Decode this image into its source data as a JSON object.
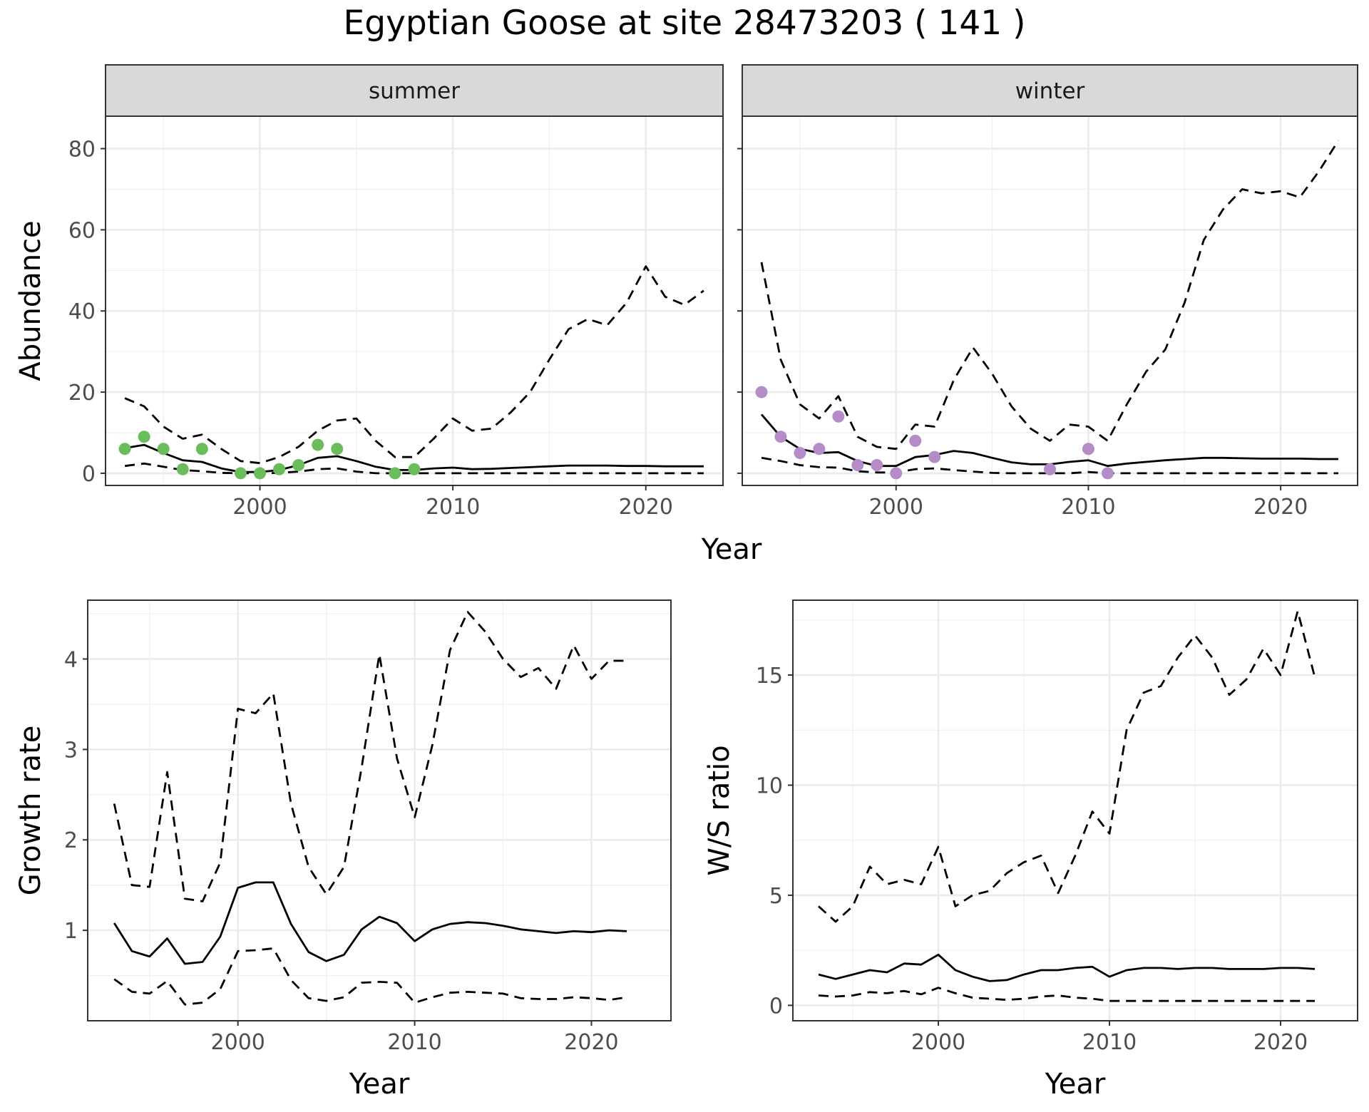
{
  "title": "Egyptian Goose at site 28473203 ( 141 )",
  "colors": {
    "summer_points": "#6bbd5c",
    "winter_points": "#b48cc8",
    "line": "#000000",
    "strip_fill": "#d9d9d9"
  },
  "chart_data": [
    {
      "type": "line",
      "panel": "summer",
      "strip": "summer",
      "xlabel": "Year",
      "ylabel": "Abundance",
      "xlim": [
        1992,
        2024
      ],
      "ylim": [
        -3,
        88
      ],
      "x_ticks": [
        2000,
        2010,
        2020
      ],
      "y_ticks": [
        0,
        20,
        40,
        60,
        80
      ],
      "grid": true,
      "series": [
        {
          "style": "solid",
          "x": [
            1993,
            1994,
            1995,
            1996,
            1997,
            1998,
            1999,
            2000,
            2001,
            2002,
            2003,
            2004,
            2005,
            2006,
            2007,
            2008,
            2009,
            2010,
            2011,
            2012,
            2013,
            2014,
            2015,
            2016,
            2017,
            2018,
            2019,
            2020,
            2021,
            2022,
            2023
          ],
          "y": [
            6.2,
            7.0,
            5.0,
            3.2,
            2.8,
            1.2,
            0.3,
            0.3,
            0.8,
            2.0,
            3.8,
            4.2,
            3.0,
            1.6,
            0.8,
            0.8,
            1.2,
            1.4,
            1.0,
            1.1,
            1.3,
            1.5,
            1.7,
            1.9,
            1.9,
            1.9,
            1.8,
            1.8,
            1.7,
            1.7,
            1.7
          ]
        },
        {
          "style": "dashed",
          "x": [
            1993,
            1994,
            1995,
            1996,
            1997,
            1998,
            1999,
            2000,
            2001,
            2002,
            2003,
            2004,
            2005,
            2006,
            2007,
            2008,
            2009,
            2010,
            2011,
            2012,
            2013,
            2014,
            2015,
            2016,
            2017,
            2018,
            2019,
            2020,
            2021,
            2022,
            2023
          ],
          "y": [
            18.5,
            16.5,
            11.5,
            8.5,
            9.5,
            6.0,
            3.0,
            2.5,
            4.0,
            6.5,
            10.5,
            13.0,
            13.5,
            8.0,
            4.0,
            4.0,
            8.5,
            13.5,
            10.5,
            11.0,
            15.0,
            20.0,
            28.0,
            35.5,
            38.0,
            36.5,
            42.0,
            51.0,
            43.5,
            41.5,
            45.0
          ]
        },
        {
          "style": "dashed",
          "x": [
            1993,
            1994,
            1995,
            1996,
            1997,
            1998,
            1999,
            2000,
            2001,
            2002,
            2003,
            2004,
            2005,
            2006,
            2007,
            2008,
            2009,
            2010,
            2011,
            2012,
            2013,
            2014,
            2015,
            2016,
            2017,
            2018,
            2019,
            2020,
            2021,
            2022,
            2023
          ],
          "y": [
            1.8,
            2.4,
            1.6,
            0.8,
            0.5,
            0.1,
            0,
            0,
            0.1,
            0.4,
            1.0,
            1.2,
            0.4,
            0,
            0,
            0,
            0,
            0,
            0,
            0,
            0,
            0,
            0,
            0,
            0,
            0,
            0,
            0,
            0,
            0,
            0
          ]
        }
      ],
      "points": {
        "x": [
          1993,
          1994,
          1995,
          1996,
          1997,
          1999,
          2000,
          2001,
          2002,
          2003,
          2004,
          2007,
          2008
        ],
        "y": [
          6,
          9,
          6,
          1,
          6,
          0,
          0,
          1,
          2,
          7,
          6,
          0,
          1
        ]
      }
    },
    {
      "type": "line",
      "panel": "winter",
      "strip": "winter",
      "xlabel": "Year",
      "ylabel": "Abundance",
      "xlim": [
        1992,
        2024
      ],
      "ylim": [
        -3,
        88
      ],
      "x_ticks": [
        2000,
        2010,
        2020
      ],
      "y_ticks": [
        0,
        20,
        40,
        60,
        80
      ],
      "grid": true,
      "series": [
        {
          "style": "solid",
          "x": [
            1993,
            1994,
            1995,
            1996,
            1997,
            1998,
            1999,
            2000,
            2001,
            2002,
            2003,
            2004,
            2005,
            2006,
            2007,
            2008,
            2009,
            2010,
            2011,
            2012,
            2013,
            2014,
            2015,
            2016,
            2017,
            2018,
            2019,
            2020,
            2021,
            2022,
            2023
          ],
          "y": [
            14.5,
            9.0,
            6.0,
            5.0,
            5.2,
            3.0,
            1.8,
            1.8,
            4.0,
            4.5,
            5.5,
            5.0,
            3.8,
            2.7,
            2.2,
            2.2,
            2.8,
            3.2,
            1.8,
            2.4,
            2.8,
            3.2,
            3.5,
            3.8,
            3.8,
            3.7,
            3.6,
            3.6,
            3.6,
            3.5,
            3.5
          ]
        },
        {
          "style": "dashed",
          "x": [
            1993,
            1994,
            1995,
            1996,
            1997,
            1998,
            1999,
            2000,
            2001,
            2002,
            2003,
            2004,
            2005,
            2006,
            2007,
            2008,
            2009,
            2010,
            2011,
            2012,
            2013,
            2014,
            2015,
            2016,
            2017,
            2018,
            2019,
            2020,
            2021,
            2022,
            2023
          ],
          "y": [
            52.0,
            28.0,
            17.0,
            13.5,
            19.0,
            9.0,
            6.5,
            6.0,
            12.0,
            11.5,
            23.0,
            31.0,
            24.5,
            16.5,
            11.0,
            8.0,
            12.0,
            11.5,
            8.0,
            17.0,
            25.0,
            30.5,
            42.0,
            57.5,
            65.0,
            70.0,
            69.0,
            69.5,
            68.0,
            74.5,
            82.0
          ]
        },
        {
          "style": "dashed",
          "x": [
            1993,
            1994,
            1995,
            1996,
            1997,
            1998,
            1999,
            2000,
            2001,
            2002,
            2003,
            2004,
            2005,
            2006,
            2007,
            2008,
            2009,
            2010,
            2011,
            2012,
            2013,
            2014,
            2015,
            2016,
            2017,
            2018,
            2019,
            2020,
            2021,
            2022,
            2023
          ],
          "y": [
            3.8,
            3.0,
            2.0,
            1.5,
            1.4,
            0.5,
            0.2,
            0.2,
            1.0,
            1.2,
            0.8,
            0.4,
            0.1,
            0,
            0,
            0,
            0,
            0.3,
            0,
            0,
            0,
            0,
            0,
            0,
            0,
            0,
            0,
            0,
            0,
            0,
            0
          ]
        }
      ],
      "points": {
        "x": [
          1993,
          1994,
          1995,
          1996,
          1997,
          1998,
          1999,
          2000,
          2001,
          2002,
          2008,
          2010,
          2011
        ],
        "y": [
          20,
          9,
          5,
          6,
          14,
          2,
          2,
          0,
          8,
          4,
          1,
          6,
          0
        ]
      }
    },
    {
      "type": "line",
      "panel": "growth",
      "xlabel": "Year",
      "ylabel": "Growth rate",
      "xlim": [
        1991.5,
        2024.5
      ],
      "ylim": [
        0,
        4.65
      ],
      "x_ticks": [
        2000,
        2010,
        2020
      ],
      "y_ticks": [
        1,
        2,
        3,
        4
      ],
      "grid": true,
      "series": [
        {
          "style": "solid",
          "x": [
            1993,
            1994,
            1995,
            1996,
            1997,
            1998,
            1999,
            2000,
            2001,
            2002,
            2003,
            2004,
            2005,
            2006,
            2007,
            2008,
            2009,
            2010,
            2011,
            2012,
            2013,
            2014,
            2015,
            2016,
            2017,
            2018,
            2019,
            2020,
            2021,
            2022
          ],
          "y": [
            1.08,
            0.77,
            0.71,
            0.91,
            0.63,
            0.65,
            0.93,
            1.47,
            1.53,
            1.53,
            1.07,
            0.76,
            0.66,
            0.73,
            1.01,
            1.15,
            1.08,
            0.88,
            1.01,
            1.07,
            1.09,
            1.08,
            1.05,
            1.01,
            0.99,
            0.97,
            0.99,
            0.98,
            1.0,
            0.99
          ]
        },
        {
          "style": "dashed",
          "x": [
            1993,
            1994,
            1995,
            1996,
            1997,
            1998,
            1999,
            2000,
            2001,
            2002,
            2003,
            2004,
            2005,
            2006,
            2007,
            2008,
            2009,
            2010,
            2011,
            2012,
            2013,
            2014,
            2015,
            2016,
            2017,
            2018,
            2019,
            2020,
            2021,
            2022
          ],
          "y": [
            2.4,
            1.5,
            1.48,
            2.75,
            1.35,
            1.32,
            1.75,
            3.45,
            3.4,
            3.62,
            2.4,
            1.7,
            1.4,
            1.7,
            2.8,
            4.05,
            2.9,
            2.25,
            3.05,
            4.1,
            4.52,
            4.3,
            4.0,
            3.8,
            3.9,
            3.67,
            4.15,
            3.78,
            3.98,
            3.98
          ]
        },
        {
          "style": "dashed",
          "x": [
            1993,
            1994,
            1995,
            1996,
            1997,
            1998,
            1999,
            2000,
            2001,
            2002,
            2003,
            2004,
            2005,
            2006,
            2007,
            2008,
            2009,
            2010,
            2011,
            2012,
            2013,
            2014,
            2015,
            2016,
            2017,
            2018,
            2019,
            2020,
            2021,
            2022
          ],
          "y": [
            0.46,
            0.32,
            0.3,
            0.44,
            0.18,
            0.2,
            0.35,
            0.77,
            0.78,
            0.8,
            0.45,
            0.25,
            0.22,
            0.26,
            0.42,
            0.43,
            0.42,
            0.2,
            0.26,
            0.31,
            0.32,
            0.31,
            0.3,
            0.25,
            0.24,
            0.24,
            0.26,
            0.25,
            0.23,
            0.26
          ]
        }
      ]
    },
    {
      "type": "line",
      "panel": "ws_ratio",
      "xlabel": "Year",
      "ylabel": "W/S ratio",
      "xlim": [
        1991.5,
        2024.5
      ],
      "ylim": [
        -0.7,
        18.4
      ],
      "x_ticks": [
        2000,
        2010,
        2020
      ],
      "y_ticks": [
        0,
        5,
        10,
        15
      ],
      "grid": true,
      "series": [
        {
          "style": "solid",
          "x": [
            1993,
            1994,
            1995,
            1996,
            1997,
            1998,
            1999,
            2000,
            2001,
            2002,
            2003,
            2004,
            2005,
            2006,
            2007,
            2008,
            2009,
            2010,
            2011,
            2012,
            2013,
            2014,
            2015,
            2016,
            2017,
            2018,
            2019,
            2020,
            2021,
            2022
          ],
          "y": [
            1.4,
            1.2,
            1.4,
            1.6,
            1.5,
            1.9,
            1.85,
            2.3,
            1.6,
            1.3,
            1.1,
            1.15,
            1.4,
            1.6,
            1.6,
            1.7,
            1.75,
            1.3,
            1.6,
            1.7,
            1.7,
            1.65,
            1.7,
            1.7,
            1.65,
            1.65,
            1.65,
            1.7,
            1.7,
            1.65
          ]
        },
        {
          "style": "dashed",
          "x": [
            1993,
            1994,
            1995,
            1996,
            1997,
            1998,
            1999,
            2000,
            2001,
            2002,
            2003,
            2004,
            2005,
            2006,
            2007,
            2008,
            2009,
            2010,
            2011,
            2012,
            2013,
            2014,
            2015,
            2016,
            2017,
            2018,
            2019,
            2020,
            2021,
            2022
          ],
          "y": [
            4.5,
            3.8,
            4.5,
            6.3,
            5.5,
            5.7,
            5.5,
            7.2,
            4.5,
            5.0,
            5.2,
            6.0,
            6.5,
            6.8,
            5.1,
            6.8,
            8.8,
            7.8,
            12.5,
            14.2,
            14.5,
            15.8,
            16.8,
            15.8,
            14.1,
            14.8,
            16.2,
            15.0,
            17.9,
            14.9
          ]
        },
        {
          "style": "dashed",
          "x": [
            1993,
            1994,
            1995,
            1996,
            1997,
            1998,
            1999,
            2000,
            2001,
            2002,
            2003,
            2004,
            2005,
            2006,
            2007,
            2008,
            2009,
            2010,
            2011,
            2012,
            2013,
            2014,
            2015,
            2016,
            2017,
            2018,
            2019,
            2020,
            2021,
            2022
          ],
          "y": [
            0.45,
            0.4,
            0.45,
            0.6,
            0.55,
            0.65,
            0.5,
            0.8,
            0.55,
            0.35,
            0.3,
            0.25,
            0.3,
            0.4,
            0.45,
            0.35,
            0.3,
            0.2,
            0.2,
            0.2,
            0.2,
            0.2,
            0.2,
            0.2,
            0.2,
            0.2,
            0.2,
            0.2,
            0.2,
            0.2
          ]
        }
      ]
    }
  ]
}
